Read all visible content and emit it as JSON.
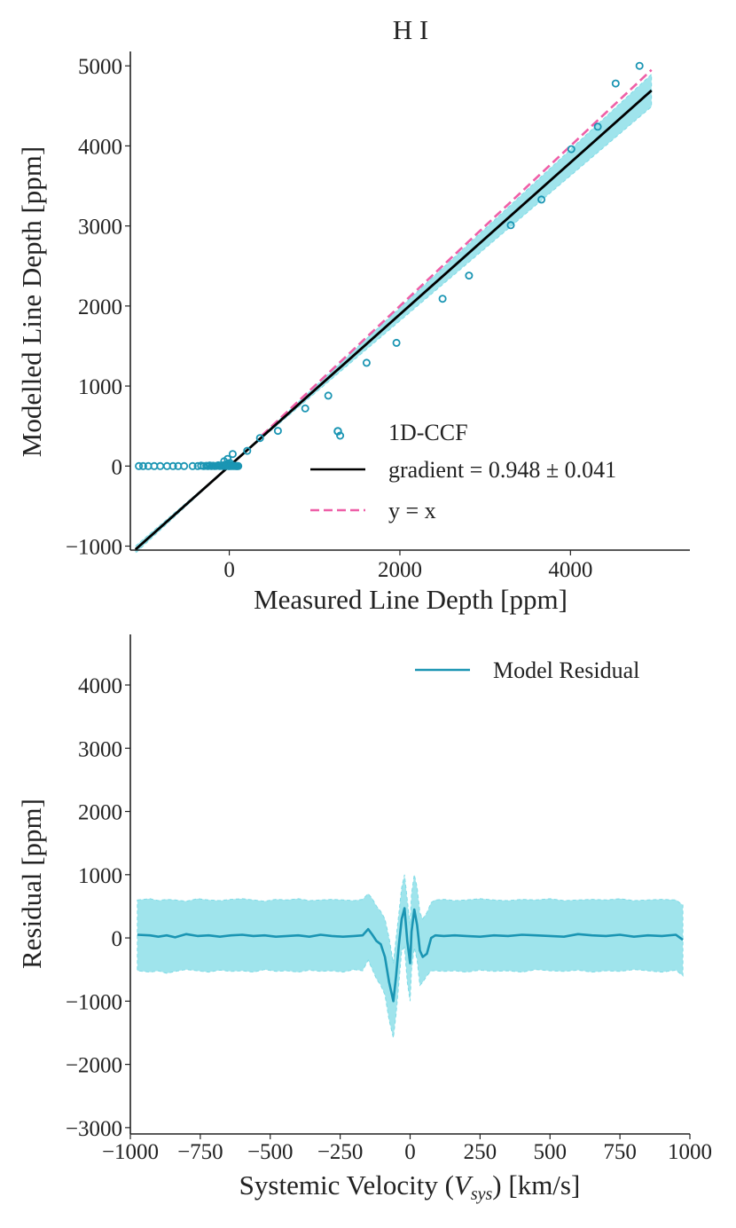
{
  "chart_data": [
    {
      "type": "scatter",
      "title": "H I",
      "xlabel": "Measured Line Depth [ppm]",
      "ylabel": "Modelled Line Depth [ppm]",
      "xlim": [
        -1160,
        5400
      ],
      "ylim": [
        -1050,
        5180
      ],
      "xticks": [
        0,
        2000,
        4000
      ],
      "yticks": [
        -1000,
        0,
        1000,
        2000,
        3000,
        4000,
        5000
      ],
      "xtick_labels": [
        "0",
        "2000",
        "4000"
      ],
      "ytick_labels": [
        "−1000",
        "0",
        "1000",
        "2000",
        "3000",
        "4000",
        "5000"
      ],
      "colors": {
        "points": "#1a95b3",
        "fit": "#000000",
        "identity": "#ee5fa7",
        "band": "#7fdbe6",
        "axes": "#222222"
      },
      "series": [
        {
          "name": "1D-CCF",
          "kind": "scatter",
          "points": [
            [
              -1060,
              0
            ],
            [
              -1010,
              0
            ],
            [
              -950,
              0
            ],
            [
              -880,
              0
            ],
            [
              -810,
              0
            ],
            [
              -730,
              0
            ],
            [
              -660,
              0
            ],
            [
              -600,
              0
            ],
            [
              -530,
              0
            ],
            [
              -430,
              0
            ],
            [
              -370,
              0
            ],
            [
              -330,
              5
            ],
            [
              -300,
              0
            ],
            [
              -270,
              3
            ],
            [
              -250,
              0
            ],
            [
              -230,
              8
            ],
            [
              -210,
              0
            ],
            [
              -190,
              4
            ],
            [
              -170,
              0
            ],
            [
              -150,
              2
            ],
            [
              -130,
              10
            ],
            [
              -110,
              0
            ],
            [
              -95,
              6
            ],
            [
              -80,
              0
            ],
            [
              -65,
              12
            ],
            [
              -50,
              0
            ],
            [
              -40,
              20
            ],
            [
              -30,
              5
            ],
            [
              -20,
              30
            ],
            [
              -10,
              0
            ],
            [
              0,
              0
            ],
            [
              5,
              40
            ],
            [
              15,
              0
            ],
            [
              25,
              10
            ],
            [
              35,
              0
            ],
            [
              45,
              5
            ],
            [
              55,
              0
            ],
            [
              65,
              3
            ],
            [
              75,
              0
            ],
            [
              85,
              0
            ],
            [
              95,
              0
            ],
            [
              105,
              0
            ],
            [
              -60,
              60
            ],
            [
              -20,
              90
            ],
            [
              40,
              150
            ],
            [
              210,
              190
            ],
            [
              360,
              350
            ],
            [
              570,
              440
            ],
            [
              890,
              720
            ],
            [
              1160,
              880
            ],
            [
              1300,
              380
            ],
            [
              1610,
              1290
            ],
            [
              1960,
              1540
            ],
            [
              2500,
              2090
            ],
            [
              2810,
              2380
            ],
            [
              3300,
              3010
            ],
            [
              3660,
              3330
            ],
            [
              4010,
              3960
            ],
            [
              4320,
              4240
            ],
            [
              4530,
              4780
            ],
            [
              4810,
              5000
            ]
          ]
        },
        {
          "name": "gradient = 0.948 ± 0.041",
          "kind": "line",
          "slope": 0.948,
          "slope_err": 0.041,
          "x_range": [
            -1100,
            4950
          ]
        },
        {
          "name": "y = x",
          "kind": "line",
          "slope": 1.0,
          "x_range": [
            380,
            4950
          ]
        }
      ],
      "legend": {
        "position": "bottom-right",
        "labels": [
          "1D-CCF",
          "gradient = 0.948 ± 0.041",
          "y = x"
        ]
      }
    },
    {
      "type": "line",
      "title": "",
      "xlabel_parts": [
        "Systemic Velocity (",
        "V",
        "sys",
        ") [km/s]"
      ],
      "ylabel": "Residual [ppm]",
      "xlim": [
        -1000,
        1000
      ],
      "ylim": [
        -3100,
        4800
      ],
      "xticks": [
        -1000,
        -750,
        -500,
        -250,
        0,
        250,
        500,
        750,
        1000
      ],
      "yticks": [
        -3000,
        -2000,
        -1000,
        0,
        1000,
        2000,
        3000,
        4000
      ],
      "xtick_labels": [
        "−1000",
        "−750",
        "−500",
        "−250",
        "0",
        "250",
        "500",
        "750",
        "1000"
      ],
      "ytick_labels": [
        "−3000",
        "−2000",
        "−1000",
        "0",
        "1000",
        "2000",
        "3000",
        "4000"
      ],
      "colors": {
        "line": "#1a95b3",
        "band": "#7fdbe6",
        "axes": "#222222"
      },
      "series": [
        {
          "name": "Model Residual",
          "x": [
            -975,
            -930,
            -900,
            -870,
            -840,
            -800,
            -760,
            -720,
            -680,
            -640,
            -600,
            -560,
            -520,
            -480,
            -440,
            -400,
            -360,
            -320,
            -280,
            -240,
            -200,
            -170,
            -150,
            -135,
            -120,
            -105,
            -90,
            -75,
            -60,
            -50,
            -40,
            -30,
            -20,
            -10,
            0,
            5,
            15,
            25,
            35,
            45,
            60,
            75,
            90,
            120,
            160,
            200,
            250,
            300,
            350,
            400,
            450,
            500,
            550,
            600,
            650,
            700,
            750,
            800,
            850,
            900,
            950,
            975
          ],
          "y": [
            50,
            40,
            20,
            40,
            10,
            60,
            30,
            40,
            20,
            40,
            50,
            30,
            40,
            20,
            30,
            40,
            20,
            50,
            30,
            20,
            30,
            40,
            140,
            50,
            -50,
            -100,
            -300,
            -700,
            -1000,
            -600,
            -100,
            300,
            470,
            -50,
            -400,
            100,
            450,
            200,
            -200,
            -300,
            -250,
            0,
            40,
            30,
            40,
            30,
            20,
            40,
            30,
            50,
            40,
            30,
            20,
            60,
            40,
            30,
            50,
            20,
            40,
            30,
            50,
            -30
          ],
          "lower": [
            -520,
            -540,
            -520,
            -560,
            -530,
            -500,
            -520,
            -540,
            -510,
            -530,
            -520,
            -540,
            -500,
            -530,
            -520,
            -540,
            -510,
            -530,
            -520,
            -540,
            -500,
            -520,
            -350,
            -500,
            -650,
            -750,
            -900,
            -1300,
            -1580,
            -1200,
            -700,
            -200,
            -150,
            -700,
            -1000,
            -500,
            -150,
            -350,
            -750,
            -700,
            -600,
            -520,
            -520,
            -530,
            -520,
            -540,
            -510,
            -530,
            -520,
            -540,
            -500,
            -520,
            -530,
            -510,
            -540,
            -520,
            -530,
            -500,
            -520,
            -540,
            -510,
            -600
          ],
          "upper": [
            600,
            620,
            590,
            610,
            600,
            580,
            620,
            600,
            590,
            610,
            620,
            600,
            580,
            610,
            600,
            620,
            590,
            600,
            610,
            600,
            590,
            610,
            700,
            620,
            500,
            420,
            300,
            0,
            -400,
            0,
            400,
            800,
            1000,
            600,
            200,
            700,
            1000,
            800,
            400,
            300,
            400,
            560,
            600,
            610,
            590,
            600,
            620,
            600,
            590,
            610,
            600,
            620,
            590,
            600,
            610,
            600,
            620,
            590,
            600,
            610,
            600,
            520
          ]
        }
      ],
      "legend": {
        "position": "top-right",
        "labels": [
          "Model Residual"
        ]
      }
    }
  ]
}
